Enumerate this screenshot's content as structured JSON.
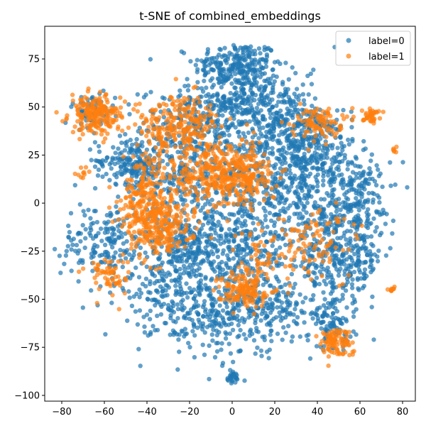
{
  "chart_data": {
    "type": "scatter",
    "title": "t-SNE of combined_embeddings",
    "xlabel": "",
    "ylabel": "",
    "xlim": [
      -88,
      86
    ],
    "ylim": [
      -103,
      92
    ],
    "xticks": [
      -80,
      -60,
      -40,
      -20,
      0,
      20,
      40,
      60,
      80
    ],
    "yticks": [
      -100,
      -75,
      -50,
      -25,
      0,
      25,
      50,
      75
    ],
    "grid": false,
    "legend_position": "top-right",
    "marker_alpha": 0.7,
    "series": [
      {
        "name": "label=0",
        "color": "#1f77b4",
        "clusters": [
          {
            "center": [
              2,
              72
            ],
            "spread": [
              10,
              6
            ],
            "n": 220
          },
          {
            "center": [
              5,
              55
            ],
            "spread": [
              12,
              8
            ],
            "n": 220
          },
          {
            "center": [
              -15,
              40
            ],
            "spread": [
              14,
              10
            ],
            "n": 260
          },
          {
            "center": [
              25,
              40
            ],
            "spread": [
              14,
              12
            ],
            "n": 240
          },
          {
            "center": [
              35,
              30
            ],
            "spread": [
              12,
              10
            ],
            "n": 200
          },
          {
            "center": [
              -48,
              22
            ],
            "spread": [
              8,
              6
            ],
            "n": 150
          },
          {
            "center": [
              -30,
              15
            ],
            "spread": [
              12,
              10
            ],
            "n": 180
          },
          {
            "center": [
              10,
              10
            ],
            "spread": [
              18,
              14
            ],
            "n": 300
          },
          {
            "center": [
              40,
              5
            ],
            "spread": [
              14,
              14
            ],
            "n": 260
          },
          {
            "center": [
              60,
              0
            ],
            "spread": [
              8,
              14
            ],
            "n": 140
          },
          {
            "center": [
              -60,
              -20
            ],
            "spread": [
              10,
              10
            ],
            "n": 170
          },
          {
            "center": [
              -20,
              -22
            ],
            "spread": [
              12,
              10
            ],
            "n": 240
          },
          {
            "center": [
              5,
              -25
            ],
            "spread": [
              14,
              12
            ],
            "n": 260
          },
          {
            "center": [
              50,
              -30
            ],
            "spread": [
              10,
              12
            ],
            "n": 300
          },
          {
            "center": [
              -30,
              -45
            ],
            "spread": [
              12,
              10
            ],
            "n": 180
          },
          {
            "center": [
              -5,
              -60
            ],
            "spread": [
              16,
              10
            ],
            "n": 240
          },
          {
            "center": [
              20,
              -55
            ],
            "spread": [
              12,
              8
            ],
            "n": 150
          },
          {
            "center": [
              48,
              -65
            ],
            "spread": [
              5,
              6
            ],
            "n": 80
          },
          {
            "center": [
              -65,
              48
            ],
            "spread": [
              5,
              5
            ],
            "n": 60
          },
          {
            "center": [
              0,
              -91
            ],
            "spread": [
              1.5,
              1.5
            ],
            "n": 25
          }
        ]
      },
      {
        "name": "label=1",
        "color": "#ff7f0e",
        "clusters": [
          {
            "center": [
              -64,
              46
            ],
            "spread": [
              6,
              5
            ],
            "n": 200
          },
          {
            "center": [
              -25,
              40
            ],
            "spread": [
              10,
              8
            ],
            "n": 230
          },
          {
            "center": [
              -40,
              5
            ],
            "spread": [
              6,
              10
            ],
            "n": 170
          },
          {
            "center": [
              -35,
              -12
            ],
            "spread": [
              8,
              8
            ],
            "n": 240
          },
          {
            "center": [
              -10,
              15
            ],
            "spread": [
              10,
              10
            ],
            "n": 220
          },
          {
            "center": [
              5,
              15
            ],
            "spread": [
              8,
              8
            ],
            "n": 200
          },
          {
            "center": [
              40,
              42
            ],
            "spread": [
              6,
              4
            ],
            "n": 90
          },
          {
            "center": [
              65,
              46
            ],
            "spread": [
              2,
              2
            ],
            "n": 40
          },
          {
            "center": [
              5,
              -45
            ],
            "spread": [
              6,
              4
            ],
            "n": 120
          },
          {
            "center": [
              48,
              -72
            ],
            "spread": [
              4,
              4
            ],
            "n": 90
          },
          {
            "center": [
              -58,
              -38
            ],
            "spread": [
              5,
              5
            ],
            "n": 60
          },
          {
            "center": [
              15,
              -30
            ],
            "spread": [
              10,
              10
            ],
            "n": 80
          },
          {
            "center": [
              40,
              -20
            ],
            "spread": [
              10,
              10
            ],
            "n": 80
          },
          {
            "center": [
              76,
              28
            ],
            "spread": [
              0.8,
              0.8
            ],
            "n": 6
          },
          {
            "center": [
              75,
              -45
            ],
            "spread": [
              1.2,
              1.2
            ],
            "n": 10
          },
          {
            "center": [
              -70,
              15
            ],
            "spread": [
              2,
              2
            ],
            "n": 10
          }
        ]
      }
    ]
  }
}
